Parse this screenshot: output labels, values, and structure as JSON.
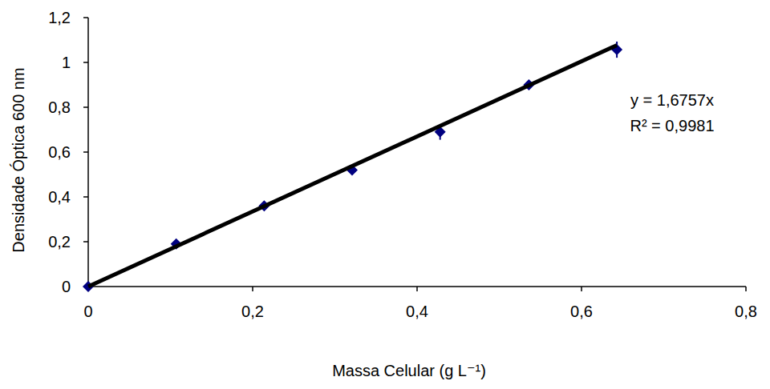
{
  "chart_data": {
    "type": "scatter",
    "x_label": "Massa Celular (g L⁻¹)",
    "y_label": "Densidade Óptica 600 nm",
    "annotations": [
      "y = 1,6757x",
      "R² = 0,9981"
    ],
    "xlim": [
      0,
      0.8
    ],
    "ylim": [
      0,
      1.2
    ],
    "xticks": [
      0,
      {
        "value": 0.2,
        "label": "0,2"
      },
      {
        "value": 0.4,
        "label": "0,4"
      },
      {
        "value": 0.6,
        "label": "0,6"
      },
      {
        "value": 0.8,
        "label": "0,8"
      }
    ],
    "yticks": [
      0,
      {
        "value": 0.2,
        "label": "0,2"
      },
      {
        "value": 0.4,
        "label": "0,4"
      },
      {
        "value": 0.6,
        "label": "0,6"
      },
      {
        "value": 0.8,
        "label": "0,8"
      },
      1,
      {
        "value": 1.2,
        "label": "1,2"
      }
    ],
    "grid": false,
    "series": [
      {
        "type": "scatter",
        "color": "#000080",
        "marker": "diamond",
        "x": [
          0,
          0.107,
          0.214,
          0.321,
          0.428,
          0.536,
          0.643
        ],
        "values": [
          0,
          0.19,
          0.36,
          0.52,
          0.69,
          0.9,
          1.057
        ],
        "errors": [
          0,
          0.01,
          0.01,
          0.01,
          0.035,
          0.015,
          0.036
        ]
      },
      {
        "type": "line",
        "color": "#000000",
        "line_style": "solid",
        "x": [
          0,
          0.643
        ],
        "values": [
          0,
          1.077
        ]
      }
    ]
  }
}
